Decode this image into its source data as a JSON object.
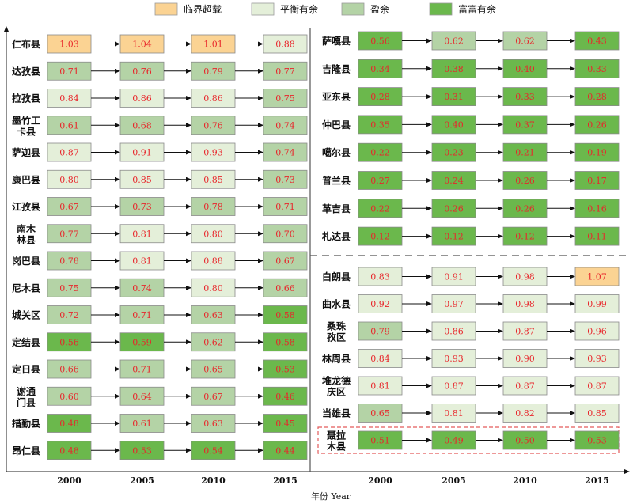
{
  "legend": [
    {
      "label": "临界超载",
      "color": "#fbd393"
    },
    {
      "label": "平衡有余",
      "color": "#e4efd9"
    },
    {
      "label": "盈余",
      "color": "#b4d3a6"
    },
    {
      "label": "富富有余",
      "color": "#6bb84c"
    }
  ],
  "years": [
    "2000",
    "2005",
    "2010",
    "2015"
  ],
  "x_axis_label": "年份 Year",
  "colors": {
    "value_text": "#e8262b",
    "arrow": "#111111",
    "cell_border": "#8a8a8a",
    "highlight_border": "#e35a5a",
    "divider": "#555555"
  },
  "level_codes": {
    "over": "临界超载",
    "balanced": "平衡有余",
    "surplus": "盈余",
    "rich": "富富有余"
  },
  "panels": [
    {
      "name": "left",
      "counties": [
        {
          "name": "仁布县",
          "values": [
            "1.03",
            "1.04",
            "1.01",
            "0.88"
          ],
          "levels": [
            "over",
            "over",
            "over",
            "balanced"
          ]
        },
        {
          "name": "达孜县",
          "values": [
            "0.71",
            "0.76",
            "0.79",
            "0.77"
          ],
          "levels": [
            "surplus",
            "surplus",
            "surplus",
            "surplus"
          ]
        },
        {
          "name": "拉孜县",
          "values": [
            "0.84",
            "0.86",
            "0.86",
            "0.75"
          ],
          "levels": [
            "balanced",
            "balanced",
            "balanced",
            "surplus"
          ]
        },
        {
          "name": "墨竹工卡县",
          "name_lines": [
            "墨竹工",
            "卡县"
          ],
          "values": [
            "0.61",
            "0.68",
            "0.76",
            "0.74"
          ],
          "levels": [
            "surplus",
            "surplus",
            "surplus",
            "surplus"
          ]
        },
        {
          "name": "萨迦县",
          "values": [
            "0.87",
            "0.91",
            "0.93",
            "0.74"
          ],
          "levels": [
            "balanced",
            "balanced",
            "balanced",
            "surplus"
          ]
        },
        {
          "name": "康巴县",
          "values": [
            "0.80",
            "0.85",
            "0.85",
            "0.73"
          ],
          "levels": [
            "balanced",
            "balanced",
            "balanced",
            "surplus"
          ]
        },
        {
          "name": "江孜县",
          "values": [
            "0.67",
            "0.73",
            "0.78",
            "0.71"
          ],
          "levels": [
            "surplus",
            "surplus",
            "surplus",
            "surplus"
          ]
        },
        {
          "name": "南木林县",
          "name_lines": [
            "南木",
            "林县"
          ],
          "values": [
            "0.77",
            "0.81",
            "0.80",
            "0.70"
          ],
          "levels": [
            "surplus",
            "balanced",
            "balanced",
            "surplus"
          ]
        },
        {
          "name": "岗巴县",
          "values": [
            "0.78",
            "0.81",
            "0.88",
            "0.67"
          ],
          "levels": [
            "surplus",
            "balanced",
            "balanced",
            "surplus"
          ]
        },
        {
          "name": "尼木县",
          "values": [
            "0.75",
            "0.74",
            "0.80",
            "0.66"
          ],
          "levels": [
            "surplus",
            "surplus",
            "balanced",
            "surplus"
          ]
        },
        {
          "name": "城关区",
          "values": [
            "0.72",
            "0.71",
            "0.63",
            "0.58"
          ],
          "levels": [
            "surplus",
            "surplus",
            "surplus",
            "rich"
          ]
        },
        {
          "name": "定结县",
          "values": [
            "0.56",
            "0.59",
            "0.62",
            "0.58"
          ],
          "levels": [
            "rich",
            "rich",
            "surplus",
            "rich"
          ]
        },
        {
          "name": "定日县",
          "values": [
            "0.66",
            "0.71",
            "0.65",
            "0.53"
          ],
          "levels": [
            "surplus",
            "surplus",
            "surplus",
            "rich"
          ]
        },
        {
          "name": "谢通门县",
          "name_lines": [
            "谢通",
            "门县"
          ],
          "values": [
            "0.60",
            "0.64",
            "0.67",
            "0.46"
          ],
          "levels": [
            "surplus",
            "surplus",
            "surplus",
            "rich"
          ]
        },
        {
          "name": "措勤县",
          "values": [
            "0.48",
            "0.61",
            "0.63",
            "0.45"
          ],
          "levels": [
            "rich",
            "surplus",
            "surplus",
            "rich"
          ]
        },
        {
          "name": "昂仁县",
          "values": [
            "0.48",
            "0.53",
            "0.54",
            "0.44"
          ],
          "levels": [
            "rich",
            "rich",
            "rich",
            "rich"
          ]
        }
      ]
    },
    {
      "name": "right-top",
      "counties": [
        {
          "name": "萨嘎县",
          "values": [
            "0.56",
            "0.62",
            "0.62",
            "0.43"
          ],
          "levels": [
            "rich",
            "surplus",
            "surplus",
            "rich"
          ]
        },
        {
          "name": "吉隆县",
          "values": [
            "0.34",
            "0.38",
            "0.40",
            "0.33"
          ],
          "levels": [
            "rich",
            "rich",
            "rich",
            "rich"
          ]
        },
        {
          "name": "亚东县",
          "values": [
            "0.28",
            "0.31",
            "0.33",
            "0.28"
          ],
          "levels": [
            "rich",
            "rich",
            "rich",
            "rich"
          ]
        },
        {
          "name": "仲巴县",
          "values": [
            "0.35",
            "0.40",
            "0.37",
            "0.26"
          ],
          "levels": [
            "rich",
            "rich",
            "rich",
            "rich"
          ]
        },
        {
          "name": "噶尔县",
          "values": [
            "0.22",
            "0.23",
            "0.21",
            "0.19"
          ],
          "levels": [
            "rich",
            "rich",
            "rich",
            "rich"
          ]
        },
        {
          "name": "普兰县",
          "values": [
            "0.27",
            "0.24",
            "0.26",
            "0.17"
          ],
          "levels": [
            "rich",
            "rich",
            "rich",
            "rich"
          ]
        },
        {
          "name": "革吉县",
          "values": [
            "0.22",
            "0.26",
            "0.26",
            "0.16"
          ],
          "levels": [
            "rich",
            "rich",
            "rich",
            "rich"
          ]
        },
        {
          "name": "札达县",
          "values": [
            "0.12",
            "0.12",
            "0.12",
            "0.11"
          ],
          "levels": [
            "rich",
            "rich",
            "rich",
            "rich"
          ]
        }
      ]
    },
    {
      "name": "right-bottom",
      "counties": [
        {
          "name": "白朗县",
          "values": [
            "0.83",
            "0.91",
            "0.98",
            "1.07"
          ],
          "levels": [
            "balanced",
            "balanced",
            "balanced",
            "over"
          ]
        },
        {
          "name": "曲水县",
          "values": [
            "0.92",
            "0.97",
            "0.98",
            "0.99"
          ],
          "levels": [
            "balanced",
            "balanced",
            "balanced",
            "balanced"
          ]
        },
        {
          "name": "桑珠孜区",
          "name_lines": [
            "桑珠",
            "孜区"
          ],
          "values": [
            "0.79",
            "0.86",
            "0.87",
            "0.96"
          ],
          "levels": [
            "surplus",
            "balanced",
            "balanced",
            "balanced"
          ]
        },
        {
          "name": "林周县",
          "values": [
            "0.84",
            "0.93",
            "0.90",
            "0.93"
          ],
          "levels": [
            "balanced",
            "balanced",
            "balanced",
            "balanced"
          ]
        },
        {
          "name": "堆龙德庆区",
          "name_lines": [
            "堆龙德",
            "庆区"
          ],
          "values": [
            "0.81",
            "0.87",
            "0.87",
            "0.87"
          ],
          "levels": [
            "balanced",
            "balanced",
            "balanced",
            "balanced"
          ]
        },
        {
          "name": "当雄县",
          "values": [
            "0.65",
            "0.81",
            "0.82",
            "0.85"
          ],
          "levels": [
            "surplus",
            "balanced",
            "balanced",
            "balanced"
          ]
        },
        {
          "name": "聂拉木县",
          "name_lines": [
            "聂拉",
            "木县"
          ],
          "highlight": true,
          "values": [
            "0.51",
            "0.49",
            "0.50",
            "0.53"
          ],
          "levels": [
            "rich",
            "rich",
            "rich",
            "rich"
          ]
        }
      ]
    }
  ]
}
